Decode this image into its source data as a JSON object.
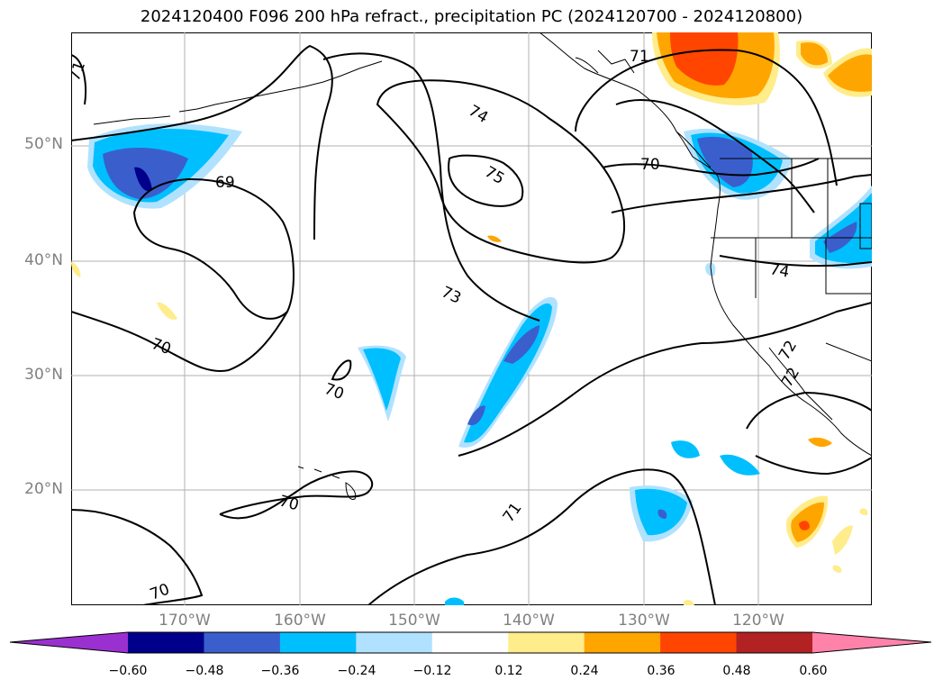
{
  "title": "2024120400 F096 200 hPa refract., precipitation PC (2024120700 - 2024120800)",
  "lat_labels": [
    "50°N",
    "40°N",
    "30°N",
    "20°N"
  ],
  "lon_labels": [
    "170°W",
    "160°W",
    "150°W",
    "140°W",
    "130°W",
    "120°W"
  ],
  "contour_labels": [
    "71",
    "74",
    "75",
    "69",
    "73",
    "70",
    "70",
    "70",
    "70",
    "71",
    "71",
    "74",
    "72",
    "72"
  ],
  "colorbar": {
    "ticks": [
      "−0.60",
      "−0.48",
      "−0.36",
      "−0.24",
      "−0.12",
      "0.12",
      "0.24",
      "0.36",
      "0.48",
      "0.60"
    ],
    "colors": [
      "#9b30d0",
      "#00008b",
      "#3a5fcd",
      "#00bfff",
      "#b0e2ff",
      "#ffffff",
      "#ffec8b",
      "#ffa500",
      "#ff4500",
      "#b22222",
      "#ff82ab"
    ]
  }
}
